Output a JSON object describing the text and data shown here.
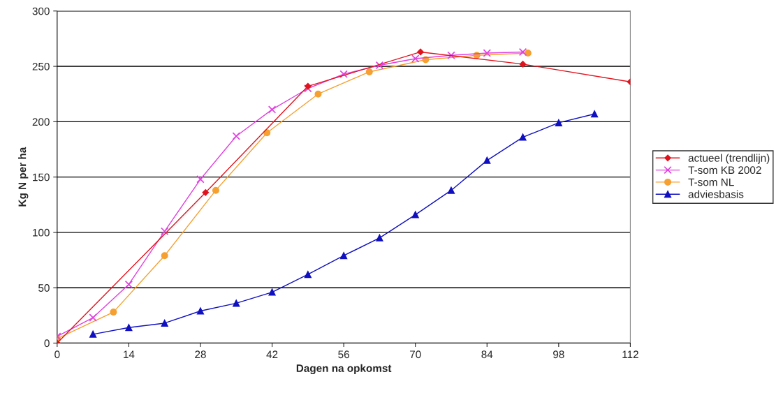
{
  "chart_data": {
    "type": "line",
    "xlabel": "Dagen na opkomst",
    "ylabel": "Kg N per ha",
    "xlim": [
      0,
      112
    ],
    "xticks": [
      0,
      14,
      28,
      42,
      56,
      70,
      84,
      98,
      112
    ],
    "ylim": [
      0,
      300
    ],
    "yticks": [
      0,
      50,
      100,
      150,
      200,
      250,
      300
    ],
    "grid": "y",
    "legend": "right",
    "line_style": "solid",
    "series": [
      {
        "name": "actueel (trendlijn)",
        "color": "#e0141e",
        "marker": "diamond",
        "x": [
          0,
          29,
          49,
          71,
          91,
          112
        ],
        "values": [
          0,
          136,
          232,
          263,
          252,
          236
        ]
      },
      {
        "name": "T-som KB 2002",
        "color": "#e040e0",
        "marker": "cross",
        "x": [
          0,
          7,
          14,
          21,
          28,
          35,
          42,
          49,
          56,
          63,
          70,
          77,
          84,
          91
        ],
        "values": [
          6,
          23,
          53,
          101,
          148,
          187,
          211,
          230,
          243,
          251,
          257,
          260,
          262,
          263
        ]
      },
      {
        "name": "T-som NL",
        "color": "#f5a030",
        "marker": "circle",
        "x": [
          0,
          11,
          21,
          31,
          41,
          51,
          61,
          72,
          82,
          92
        ],
        "values": [
          4,
          28,
          79,
          138,
          190,
          225,
          245,
          256,
          260,
          262
        ]
      },
      {
        "name": "adviesbasis",
        "color": "#1010c0",
        "marker": "triangle",
        "x": [
          7,
          14,
          21,
          28,
          35,
          42,
          49,
          56,
          63,
          70,
          77,
          84,
          91,
          98,
          105
        ],
        "values": [
          8,
          14,
          18,
          29,
          36,
          46,
          62,
          79,
          95,
          116,
          138,
          165,
          186,
          199,
          207
        ]
      }
    ]
  }
}
